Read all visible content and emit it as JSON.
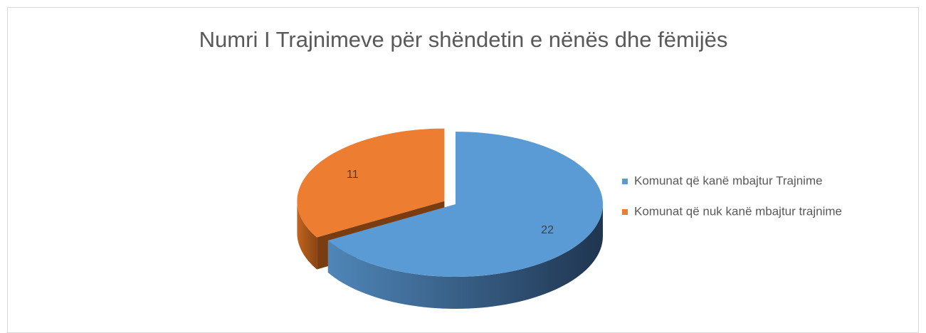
{
  "chart_data": {
    "type": "pie",
    "title": "Numri I Trajnimeve për shëndetin e nënës dhe fëmijës",
    "categories": [
      "Komunat që kanë mbajtur Trajnime",
      "Komunat që nuk kanë mbajtur trajnime"
    ],
    "values": [
      22,
      11
    ],
    "colors": [
      "#5b9bd5",
      "#ed7d31"
    ],
    "legend": "right"
  }
}
